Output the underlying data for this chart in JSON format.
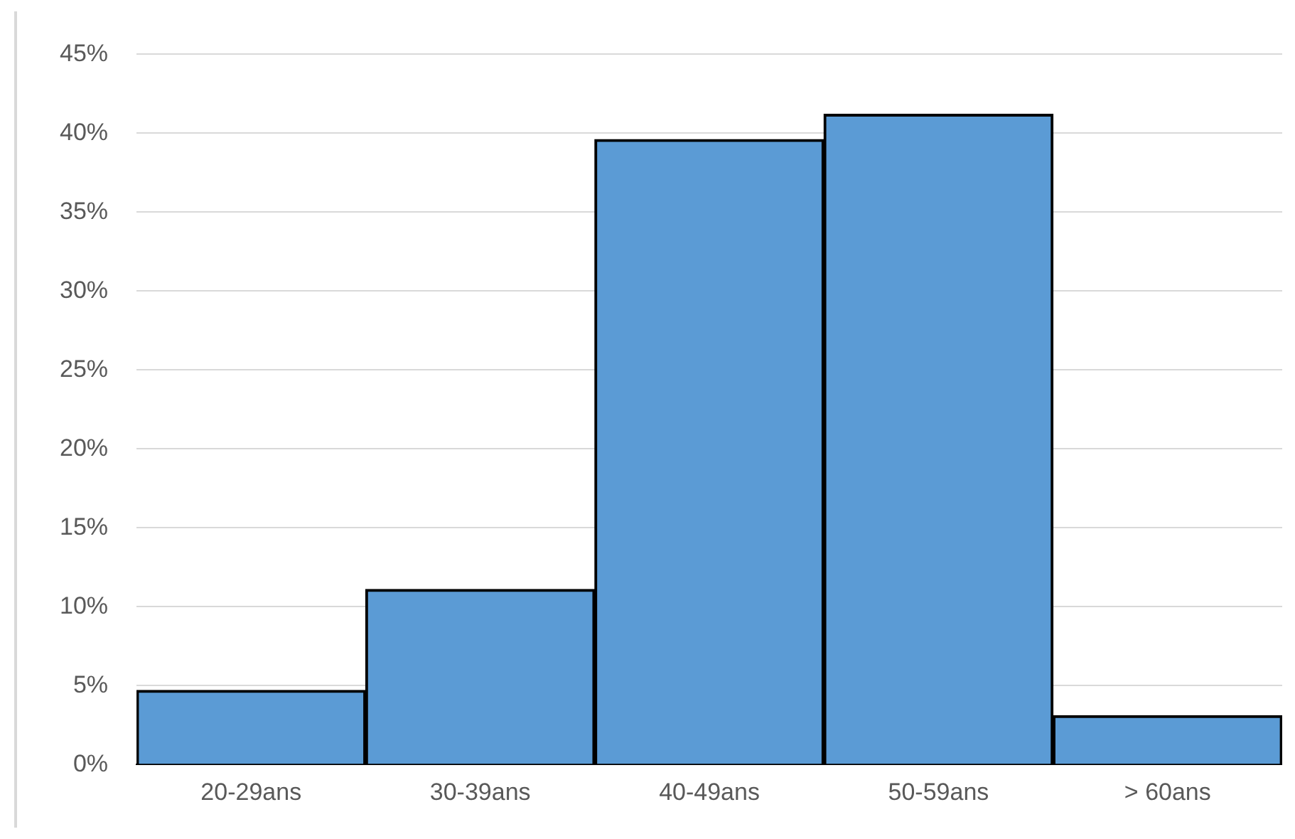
{
  "chart_data": {
    "type": "bar",
    "categories": [
      "20-29ans",
      "30-39ans",
      "40-49ans",
      "50-59ans",
      "> 60ans"
    ],
    "values": [
      4.7,
      11.1,
      39.6,
      41.2,
      3.1
    ],
    "color": "#5b9bd5",
    "ylim": [
      0,
      45
    ],
    "yticks": [
      {
        "value": 0,
        "label": "0%"
      },
      {
        "value": 5,
        "label": "5%"
      },
      {
        "value": 10,
        "label": "10%"
      },
      {
        "value": 15,
        "label": "15%"
      },
      {
        "value": 20,
        "label": "20%"
      },
      {
        "value": 25,
        "label": "25%"
      },
      {
        "value": 30,
        "label": "30%"
      },
      {
        "value": 35,
        "label": "35%"
      },
      {
        "value": 40,
        "label": "40%"
      },
      {
        "value": 45,
        "label": "45%"
      }
    ],
    "grid": "y",
    "legend": false
  }
}
